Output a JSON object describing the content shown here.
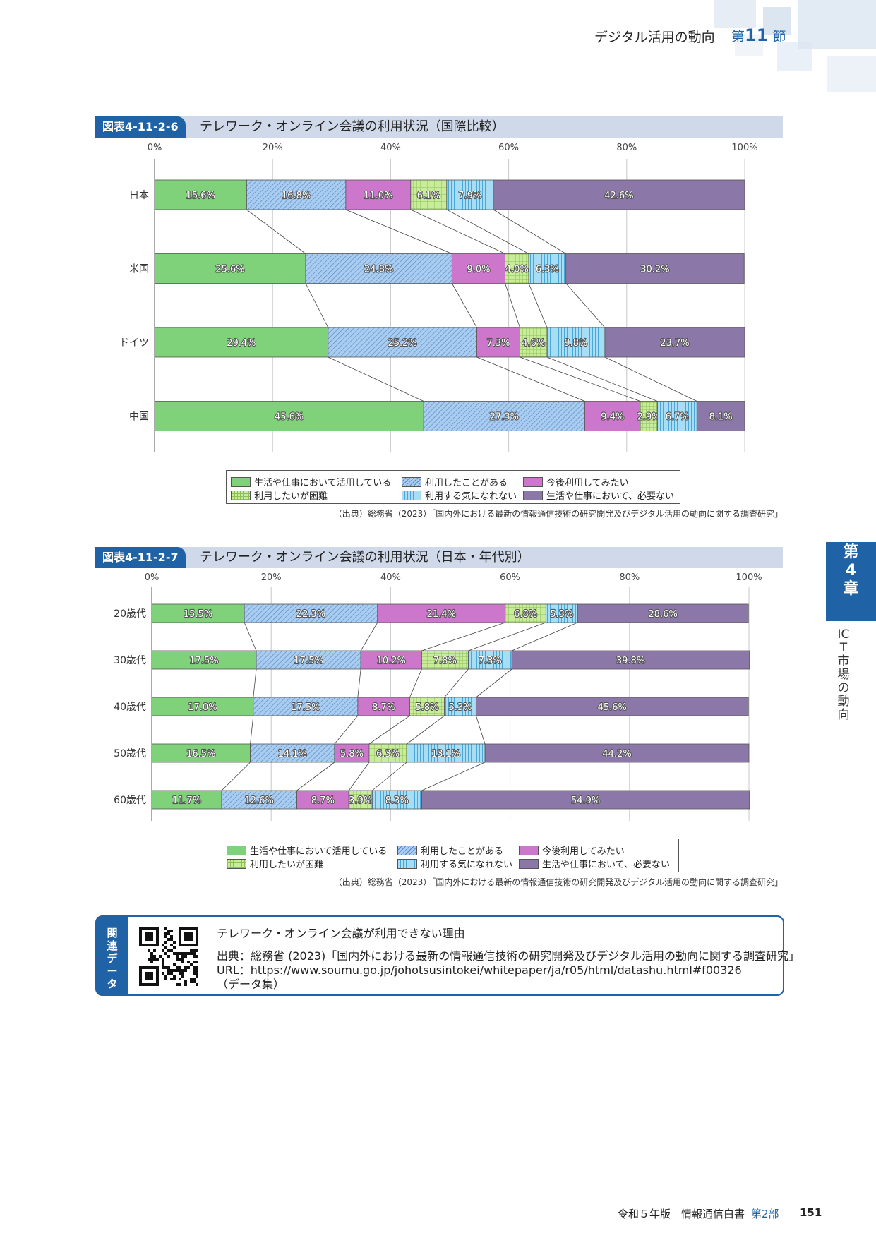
{
  "header": {
    "title": "デジタル活用の動向",
    "section_prefix": "第",
    "section_num": "11",
    "section_suffix": "節"
  },
  "charts": [
    {
      "figure_number": "図表4-11-2-6",
      "title": "テレワーク・オンライン会議の利用状況（国際比較）",
      "source": "（出典）総務省（2023）「国内外における最新の情報通信技術の研究開発及びデジタル活用の動向に関する調査研究」"
    },
    {
      "figure_number": "図表4-11-2-7",
      "title": "テレワーク・オンライン会議の利用状況（日本・年代別）",
      "source": "（出典）総務省（2023）「国内外における最新の情報通信技術の研究開発及びデジタル活用の動向に関する調査研究」"
    }
  ],
  "chart_data": [
    {
      "type": "bar",
      "orientation": "horizontal",
      "stacked": true,
      "percent": true,
      "title": "テレワーク・オンライン会議の利用状況（国際比較）",
      "xlim": [
        0,
        100
      ],
      "xticks": [
        "0%",
        "20%",
        "40%",
        "60%",
        "80%",
        "100%"
      ],
      "categories": [
        "日本",
        "米国",
        "ドイツ",
        "中国"
      ],
      "series": [
        {
          "name": "生活や仕事において活用している",
          "values": [
            15.6,
            25.6,
            29.4,
            45.6
          ],
          "color": "#7fd27a",
          "pattern": "solid"
        },
        {
          "name": "利用したことがある",
          "values": [
            16.8,
            24.8,
            25.2,
            27.3
          ],
          "color": "#a9cdf0",
          "pattern": "diagonal"
        },
        {
          "name": "今後利用してみたい",
          "values": [
            11.0,
            9.0,
            7.3,
            9.4
          ],
          "color": "#cc77cc",
          "pattern": "solid"
        },
        {
          "name": "利用したいが困難",
          "values": [
            6.1,
            4.0,
            4.6,
            2.9
          ],
          "color": "#c8ec9a",
          "pattern": "grid"
        },
        {
          "name": "利用する気になれない",
          "values": [
            7.9,
            6.3,
            9.8,
            6.7
          ],
          "color": "#a8def5",
          "pattern": "vertical"
        },
        {
          "name": "生活や仕事において、必要ない",
          "values": [
            42.6,
            30.2,
            23.7,
            8.1
          ],
          "color": "#8b78a8",
          "pattern": "solid"
        }
      ],
      "labels": [
        [
          "15.6%",
          "16.8%",
          "11.0%",
          "6.1%",
          "7.9%",
          "42.6%"
        ],
        [
          "25.6%",
          "24.8%",
          "9.0%",
          "4.0%",
          "6.3%",
          "30.2%"
        ],
        [
          "29.4%",
          "25.2%",
          "7.3%",
          "4.6%",
          "9.8%",
          "23.7%"
        ],
        [
          "45.6%",
          "27.3%",
          "9.4%",
          "2.9%",
          "6.7%",
          "8.1%"
        ]
      ],
      "grid": true,
      "legend": "bottom"
    },
    {
      "type": "bar",
      "orientation": "horizontal",
      "stacked": true,
      "percent": true,
      "title": "テレワーク・オンライン会議の利用状況（日本・年代別）",
      "xlim": [
        0,
        100
      ],
      "xticks": [
        "0%",
        "20%",
        "40%",
        "60%",
        "80%",
        "100%"
      ],
      "categories": [
        "20歳代",
        "30歳代",
        "40歳代",
        "50歳代",
        "60歳代"
      ],
      "series": [
        {
          "name": "生活や仕事において活用している",
          "values": [
            15.5,
            17.5,
            17.0,
            16.5,
            11.7
          ],
          "color": "#7fd27a",
          "pattern": "solid"
        },
        {
          "name": "利用したことがある",
          "values": [
            22.3,
            17.5,
            17.5,
            14.1,
            12.6
          ],
          "color": "#a9cdf0",
          "pattern": "diagonal"
        },
        {
          "name": "今後利用してみたい",
          "values": [
            21.4,
            10.2,
            8.7,
            5.8,
            8.7
          ],
          "color": "#cc77cc",
          "pattern": "solid"
        },
        {
          "name": "利用したいが困難",
          "values": [
            6.8,
            7.8,
            5.8,
            6.3,
            3.9
          ],
          "color": "#c8ec9a",
          "pattern": "grid"
        },
        {
          "name": "利用する気になれない",
          "values": [
            5.3,
            7.3,
            5.3,
            13.1,
            8.3
          ],
          "color": "#a8def5",
          "pattern": "vertical"
        },
        {
          "name": "生活や仕事において、必要ない",
          "values": [
            28.6,
            39.8,
            45.6,
            44.2,
            54.9
          ],
          "color": "#8b78a8",
          "pattern": "solid"
        }
      ],
      "labels": [
        [
          "15.5%",
          "22.3%",
          "21.4%",
          "6.8%",
          "5.3%",
          "28.6%"
        ],
        [
          "17.5%",
          "17.5%",
          "10.2%",
          "7.8%",
          "7.3%",
          "39.8%"
        ],
        [
          "17.0%",
          "17.5%",
          "8.7%",
          "5.8%",
          "5.3%",
          "45.6%"
        ],
        [
          "16.5%",
          "14.1%",
          "5.8%",
          "6.3%",
          "13.1%",
          "44.2%"
        ],
        [
          "11.7%",
          "12.6%",
          "8.7%",
          "3.9%",
          "8.3%",
          "54.9%"
        ]
      ],
      "grid": true,
      "legend": "bottom"
    }
  ],
  "side_tab": {
    "part": "第",
    "num": "4",
    "chapter": "章",
    "vertical_title": "ICT市場の動向"
  },
  "related": {
    "label": "関連データ",
    "qr_icon": "qr-code-icon",
    "title": "テレワーク・オンライン会議が利用できない理由",
    "source": "出典：総務省 (2023)「国内外における最新の情報通信技術の研究開発及びデジタル活用の動向に関する調査研究」",
    "url": "URL：https://www.soumu.go.jp/johotsusintokei/whitepaper/ja/r05/html/datashu.html#f00326",
    "note": "（データ集）"
  },
  "footer": {
    "publication": "令和５年版　情報通信白書",
    "part": "第2部",
    "page": "151"
  }
}
